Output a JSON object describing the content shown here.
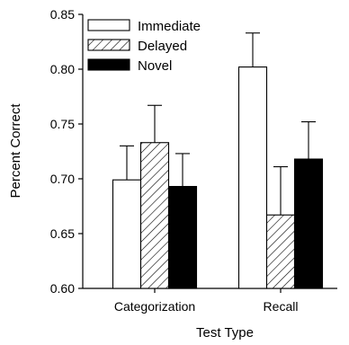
{
  "chart_data": {
    "type": "bar",
    "xlabel": "Test Type",
    "ylabel": "Percent Correct",
    "categories": [
      "Categorization",
      "Recall"
    ],
    "ylim": [
      0.6,
      0.85
    ],
    "yticks": [
      "0.60",
      "0.65",
      "0.70",
      "0.75",
      "0.80",
      "0.85"
    ],
    "legend_position": "top-left",
    "series": [
      {
        "name": "Immediate",
        "fill": "white",
        "values": [
          0.699,
          0.802
        ],
        "errors": [
          0.031,
          0.031
        ]
      },
      {
        "name": "Delayed",
        "fill": "hatched",
        "values": [
          0.733,
          0.667
        ],
        "errors": [
          0.034,
          0.044
        ]
      },
      {
        "name": "Novel",
        "fill": "black",
        "values": [
          0.693,
          0.718
        ],
        "errors": [
          0.03,
          0.034
        ]
      }
    ]
  }
}
